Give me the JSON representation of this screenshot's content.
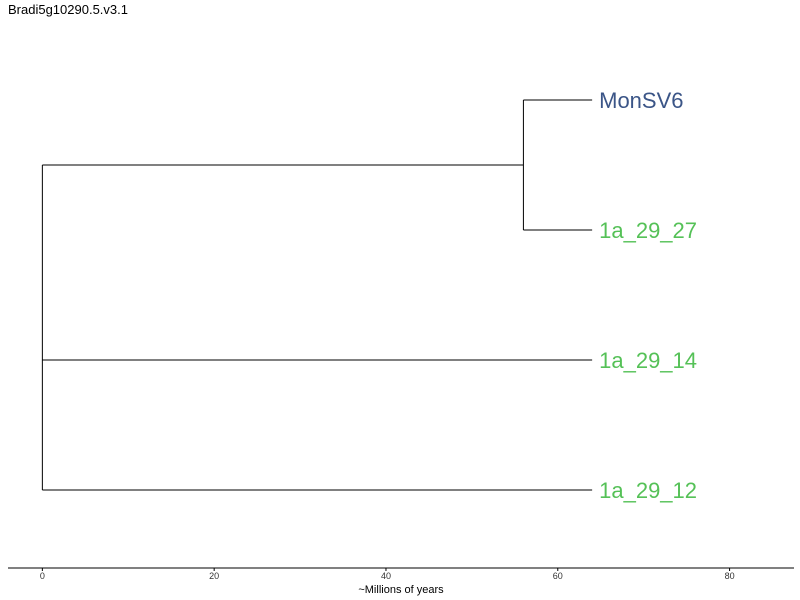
{
  "title": "Bradi5g10290.5.v3.1",
  "chart_data": {
    "type": "dendrogram",
    "xlabel": "~Millions of years",
    "xlim": [
      -4,
      87.5
    ],
    "xticks": [
      0,
      20,
      40,
      60,
      80
    ],
    "colors": {
      "branch": "#000000",
      "group_a": "#3b5587",
      "group_b": "#55c157"
    },
    "leaves": [
      {
        "name": "MonSV6",
        "color": "#3b5587",
        "tip_x": 64
      },
      {
        "name": "1a_29_27",
        "color": "#55c157",
        "tip_x": 64
      },
      {
        "name": "1a_29_14",
        "color": "#55c157",
        "tip_x": 64
      },
      {
        "name": "1a_29_12",
        "color": "#55c157",
        "tip_x": 64
      }
    ],
    "nodes": [
      {
        "name": "root",
        "x": 0,
        "children": [
          "n1",
          "1a_29_14",
          "1a_29_12"
        ]
      },
      {
        "name": "n1",
        "x": 56,
        "children": [
          "MonSV6",
          "1a_29_27"
        ]
      }
    ]
  }
}
